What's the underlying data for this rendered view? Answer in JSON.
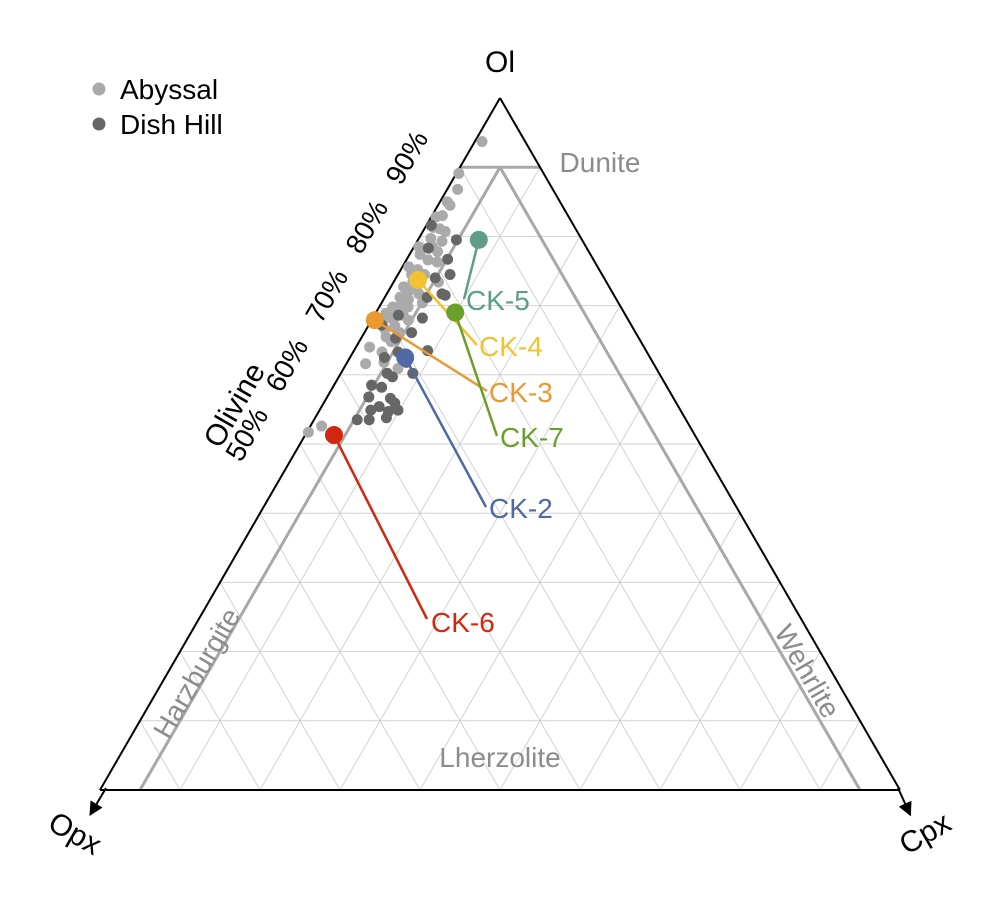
{
  "chart_data": {
    "type": "scatter",
    "projection": "ternary",
    "vertices": {
      "top": "Ol",
      "bottom_left": "Opx",
      "bottom_right": "Cpx"
    },
    "axis_title": "Olivine",
    "olivine_ticks": [
      {
        "value": 50,
        "label": "50%"
      },
      {
        "value": 60,
        "label": "60%"
      },
      {
        "value": 70,
        "label": "70%"
      },
      {
        "value": 80,
        "label": "80%"
      },
      {
        "value": 90,
        "label": "90%"
      }
    ],
    "grid_step": 10,
    "field_labels": [
      "Dunite",
      "Harzburgite",
      "Wehrlite",
      "Lherzolite"
    ],
    "legend": [
      {
        "name": "Abyssal",
        "color": "#aaaaaa"
      },
      {
        "name": "Dish Hill",
        "color": "#666666"
      }
    ],
    "series": [
      {
        "name": "Abyssal",
        "color": "#aaaaaa",
        "points": [
          {
            "ol": 93.7,
            "cpx": 0.9
          },
          {
            "ol": 89.1,
            "cpx": 0.3
          },
          {
            "ol": 86.8,
            "cpx": 1.3
          },
          {
            "ol": 85.0,
            "cpx": 0.9
          },
          {
            "ol": 84.5,
            "cpx": 1.5
          },
          {
            "ol": 83.0,
            "cpx": 1.3
          },
          {
            "ol": 82.8,
            "cpx": 0.6
          },
          {
            "ol": 81.3,
            "cpx": 1.0
          },
          {
            "ol": 81.1,
            "cpx": 1.9
          },
          {
            "ol": 80.7,
            "cpx": 2.8
          },
          {
            "ol": 79.7,
            "cpx": 1.5
          },
          {
            "ol": 79.3,
            "cpx": 3.1
          },
          {
            "ol": 78.5,
            "cpx": 0.6
          },
          {
            "ol": 78.5,
            "cpx": 2.3
          },
          {
            "ol": 77.8,
            "cpx": 3.3
          },
          {
            "ol": 77.4,
            "cpx": 1.3
          },
          {
            "ol": 76.6,
            "cpx": 2.7
          },
          {
            "ol": 76.3,
            "cpx": 4.0
          },
          {
            "ol": 75.6,
            "cpx": 0.8
          },
          {
            "ol": 75.2,
            "cpx": 2.1
          },
          {
            "ol": 74.5,
            "cpx": 3.3
          },
          {
            "ol": 74.5,
            "cpx": 1.7
          },
          {
            "ol": 73.4,
            "cpx": 2.4
          },
          {
            "ol": 73.4,
            "cpx": 5.6
          },
          {
            "ol": 72.7,
            "cpx": 1.6
          },
          {
            "ol": 72.7,
            "cpx": 3.2
          },
          {
            "ol": 72.0,
            "cpx": 2.5
          },
          {
            "ol": 71.7,
            "cpx": 4.0
          },
          {
            "ol": 71.2,
            "cpx": 1.9
          },
          {
            "ol": 70.9,
            "cpx": 3.1
          },
          {
            "ol": 70.4,
            "cpx": 2.5
          },
          {
            "ol": 70.4,
            "cpx": 5.1
          },
          {
            "ol": 69.8,
            "cpx": 3.6
          },
          {
            "ol": 69.8,
            "cpx": 1.7
          },
          {
            "ol": 69.3,
            "cpx": 2.8
          },
          {
            "ol": 68.9,
            "cpx": 1.3
          },
          {
            "ol": 68.6,
            "cpx": 3.6
          },
          {
            "ol": 68.2,
            "cpx": 2.4
          },
          {
            "ol": 67.9,
            "cpx": 4.6
          },
          {
            "ol": 67.5,
            "cpx": 1.6
          },
          {
            "ol": 67.1,
            "cpx": 3.3
          },
          {
            "ol": 66.6,
            "cpx": 2.3
          },
          {
            "ol": 66.1,
            "cpx": 4.4
          },
          {
            "ol": 65.5,
            "cpx": 3.0
          },
          {
            "ol": 64.8,
            "cpx": 4.0
          },
          {
            "ol": 64.0,
            "cpx": 1.7
          },
          {
            "ol": 63.3,
            "cpx": 3.6
          },
          {
            "ol": 61.6,
            "cpx": 2.4
          },
          {
            "ol": 61.8,
            "cpx": 4.6
          },
          {
            "ol": 60.9,
            "cpx": 6.8
          },
          {
            "ol": 52.6,
            "cpx": 1.4
          },
          {
            "ol": 51.7,
            "cpx": 0.2
          }
        ]
      },
      {
        "name": "Dish Hill",
        "color": "#666666",
        "points": [
          {
            "ol": 81.6,
            "cpx": 0.6
          },
          {
            "ol": 79.5,
            "cpx": 4.8
          },
          {
            "ol": 78.3,
            "cpx": 1.9
          },
          {
            "ol": 76.7,
            "cpx": 5.1
          },
          {
            "ol": 74.5,
            "cpx": 6.5
          },
          {
            "ol": 74.0,
            "cpx": 4.9
          },
          {
            "ol": 71.5,
            "cpx": 7.4
          },
          {
            "ol": 71.2,
            "cpx": 5.3
          },
          {
            "ol": 71.7,
            "cpx": 6.9
          },
          {
            "ol": 68.6,
            "cpx": 3.0
          },
          {
            "ol": 68.2,
            "cpx": 6.2
          },
          {
            "ol": 67.2,
            "cpx": 1.6
          },
          {
            "ol": 66.1,
            "cpx": 5.9
          },
          {
            "ol": 65.3,
            "cpx": 4.3
          },
          {
            "ol": 63.5,
            "cpx": 9.2
          },
          {
            "ol": 63.3,
            "cpx": 5.6
          },
          {
            "ol": 62.5,
            "cpx": 4.3
          },
          {
            "ol": 61.8,
            "cpx": 7.4
          },
          {
            "ol": 60.2,
            "cpx": 5.8
          },
          {
            "ol": 60.2,
            "cpx": 9.0
          },
          {
            "ol": 59.7,
            "cpx": 6.7
          },
          {
            "ol": 58.5,
            "cpx": 4.7
          },
          {
            "ol": 58.2,
            "cpx": 6.1
          },
          {
            "ol": 56.8,
            "cpx": 5.2
          },
          {
            "ol": 56.6,
            "cpx": 8.0
          },
          {
            "ol": 55.9,
            "cpx": 8.9
          },
          {
            "ol": 55.4,
            "cpx": 7.2
          },
          {
            "ol": 54.9,
            "cpx": 6.4
          },
          {
            "ol": 54.7,
            "cpx": 8.7
          },
          {
            "ol": 54.9,
            "cpx": 9.8
          },
          {
            "ol": 53.5,
            "cpx": 5.4
          },
          {
            "ol": 53.5,
            "cpx": 6.9
          },
          {
            "ol": 53.8,
            "cpx": 8.9
          }
        ]
      }
    ],
    "samples": [
      {
        "name": "CK-5",
        "ol": 79.5,
        "cpx": 7.6,
        "color": "#5e9e86"
      },
      {
        "name": "CK-4",
        "ol": 73.7,
        "cpx": 2.9,
        "color": "#f3c230"
      },
      {
        "name": "CK-3",
        "ol": 67.9,
        "cpx": 0.4,
        "color": "#e9992f"
      },
      {
        "name": "CK-7",
        "ol": 69.0,
        "cpx": 9.9,
        "color": "#6a9f2a"
      },
      {
        "name": "CK-2",
        "ol": 62.5,
        "cpx": 6.9,
        "color": "#4f68a6"
      },
      {
        "name": "CK-6",
        "ol": 51.3,
        "cpx": 3.6,
        "color": "#d3260e"
      }
    ]
  }
}
